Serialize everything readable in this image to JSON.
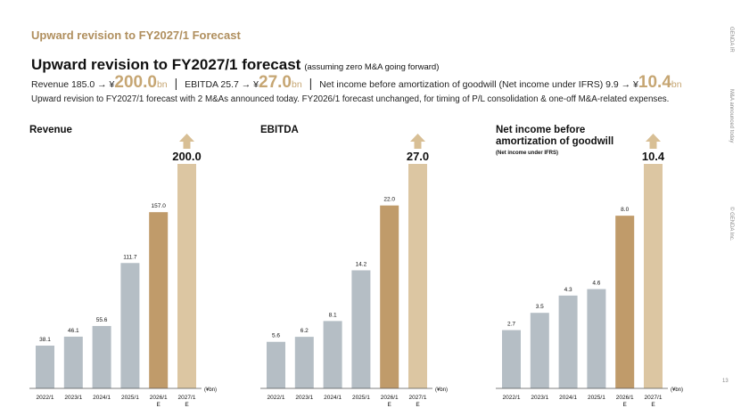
{
  "header": {
    "section_title": "Upward revision to FY2027/1 Forecast",
    "title": "Upward revision to FY2027/1 forecast",
    "title_note": "(assuming zero M&A going forward)"
  },
  "kpi": {
    "revenue_label": "Revenue 185.0 → ¥",
    "revenue_value": "200.0",
    "ebitda_label": "EBITDA 25.7 → ¥",
    "ebitda_value": "27.0",
    "ni_label": "Net income before amortization of goodwill (Net income under IFRS) 9.9 → ¥",
    "ni_value": "10.4",
    "unit": "bn",
    "separator": "|"
  },
  "subtitle": "Upward revision to FY2027/1 forecast with 2 M&As announced today. FY2026/1 forecast unchanged, for timing of P/L consolidation & one-off M&A-related expenses.",
  "side": {
    "company": "GENDA IR",
    "note": "M&A announced today",
    "copyright": "© GENDA Inc."
  },
  "page_number": "13",
  "colors": {
    "actual": "#b5bec5",
    "forecast_prev": "#c09b6a",
    "forecast_new": "#dcc6a2",
    "arrow": "#d8bf95"
  },
  "icons": {
    "revision": "up-arrow-icon"
  },
  "chart_data": [
    {
      "type": "bar",
      "title": "Revenue",
      "subtitle": "",
      "unit_label": "(¥bn)",
      "categories": [
        "2022/1",
        "2023/1",
        "2024/1",
        "2025/1",
        "2026/1 E",
        "2027/1 E"
      ],
      "values": [
        38.1,
        46.1,
        55.6,
        111.7,
        157.0,
        200.0
      ],
      "labels": [
        "38.1",
        "46.1",
        "55.6",
        "111.7",
        "157.0",
        "200.0"
      ],
      "ylim": [
        0,
        200
      ],
      "grid": false
    },
    {
      "type": "bar",
      "title": "EBITDA",
      "subtitle": "",
      "unit_label": "(¥bn)",
      "categories": [
        "2022/1",
        "2023/1",
        "2024/1",
        "2025/1",
        "2026/1 E",
        "2027/1 E"
      ],
      "values": [
        5.6,
        6.2,
        8.1,
        14.2,
        22.0,
        27.0
      ],
      "labels": [
        "5.6",
        "6.2",
        "8.1",
        "14.2",
        "22.0",
        "27.0"
      ],
      "ylim": [
        0,
        27
      ],
      "grid": false
    },
    {
      "type": "bar",
      "title": "Net income before amortization of goodwill",
      "subtitle": "(Net income under IFRS)",
      "unit_label": "(¥bn)",
      "categories": [
        "2022/1",
        "2023/1",
        "2024/1",
        "2025/1",
        "2026/1 E",
        "2027/1 E"
      ],
      "values": [
        2.7,
        3.5,
        4.3,
        4.6,
        8.0,
        10.4
      ],
      "labels": [
        "2.7",
        "3.5",
        "4.3",
        "4.6",
        "8.0",
        "10.4"
      ],
      "ylim": [
        0,
        10.4
      ],
      "grid": false
    }
  ]
}
